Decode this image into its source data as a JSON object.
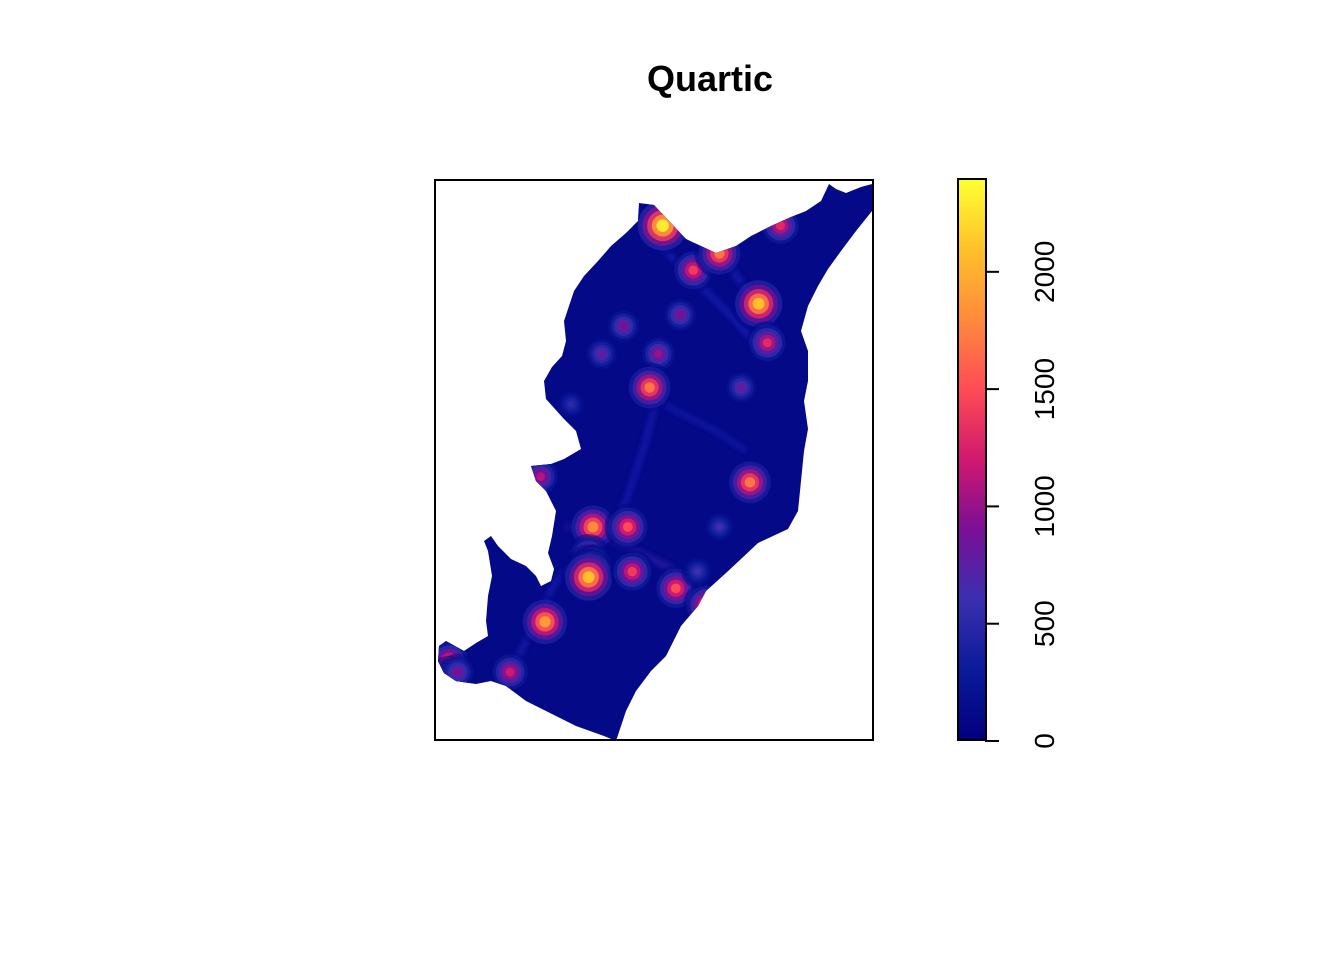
{
  "chart_data": {
    "type": "heatmap",
    "title": "Quartic",
    "xlabel": "",
    "ylabel": "",
    "legend": {
      "placement": "right",
      "range": [
        0,
        2400
      ],
      "ticks": [
        {
          "value": 0,
          "label": "0"
        },
        {
          "value": 500,
          "label": "500"
        },
        {
          "value": 1000,
          "label": "1000"
        },
        {
          "value": 1500,
          "label": "1500"
        },
        {
          "value": 2000,
          "label": "2000"
        }
      ],
      "colormap": [
        "#00007f",
        "#0b1b9a",
        "#3a2fb0",
        "#7a0f96",
        "#d0186f",
        "#ff4b55",
        "#ff8a3c",
        "#ffc02a",
        "#ffff33"
      ]
    },
    "background_value": 100,
    "hotspots": [
      {
        "x": 0.52,
        "y": 0.08,
        "value": 2300
      },
      {
        "x": 0.59,
        "y": 0.16,
        "value": 1400
      },
      {
        "x": 0.65,
        "y": 0.13,
        "value": 1700
      },
      {
        "x": 0.74,
        "y": 0.22,
        "value": 2100
      },
      {
        "x": 0.76,
        "y": 0.29,
        "value": 1300
      },
      {
        "x": 0.79,
        "y": 0.08,
        "value": 1300
      },
      {
        "x": 0.56,
        "y": 0.24,
        "value": 900
      },
      {
        "x": 0.43,
        "y": 0.26,
        "value": 900
      },
      {
        "x": 0.38,
        "y": 0.31,
        "value": 800
      },
      {
        "x": 0.51,
        "y": 0.31,
        "value": 1000
      },
      {
        "x": 0.49,
        "y": 0.37,
        "value": 1700
      },
      {
        "x": 0.7,
        "y": 0.37,
        "value": 800
      },
      {
        "x": 0.31,
        "y": 0.4,
        "value": 500
      },
      {
        "x": 0.24,
        "y": 0.53,
        "value": 1100
      },
      {
        "x": 0.72,
        "y": 0.54,
        "value": 1700
      },
      {
        "x": 0.36,
        "y": 0.62,
        "value": 1800
      },
      {
        "x": 0.44,
        "y": 0.62,
        "value": 1500
      },
      {
        "x": 0.35,
        "y": 0.67,
        "value": 1200
      },
      {
        "x": 0.35,
        "y": 0.69,
        "value": 1300
      },
      {
        "x": 0.36,
        "y": 0.69,
        "value": 1300
      },
      {
        "x": 0.35,
        "y": 0.71,
        "value": 2100
      },
      {
        "x": 0.45,
        "y": 0.7,
        "value": 1400
      },
      {
        "x": 0.55,
        "y": 0.73,
        "value": 1500
      },
      {
        "x": 0.62,
        "y": 0.76,
        "value": 1500
      },
      {
        "x": 0.6,
        "y": 0.7,
        "value": 600
      },
      {
        "x": 0.65,
        "y": 0.62,
        "value": 600
      },
      {
        "x": 0.25,
        "y": 0.79,
        "value": 1900
      },
      {
        "x": 0.17,
        "y": 0.88,
        "value": 1200
      },
      {
        "x": 0.03,
        "y": 0.86,
        "value": 1400
      },
      {
        "x": 0.03,
        "y": 0.89,
        "value": 1300
      },
      {
        "x": 0.05,
        "y": 0.88,
        "value": 900
      }
    ]
  }
}
